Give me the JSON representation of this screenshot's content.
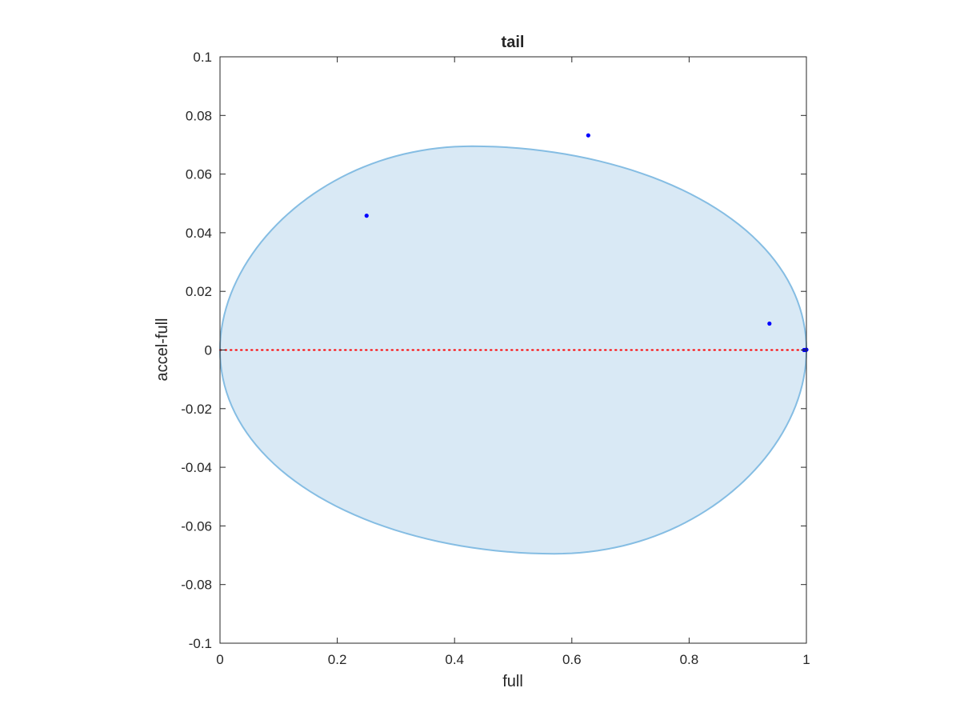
{
  "chart_data": {
    "type": "scatter",
    "title": "tail",
    "xlabel": "full",
    "ylabel": "accel-full",
    "xlim": [
      0,
      1
    ],
    "ylim": [
      -0.1,
      0.1
    ],
    "xticks": [
      0,
      0.2,
      0.4,
      0.6,
      0.8,
      1
    ],
    "xtick_labels": [
      "0",
      "0.2",
      "0.4",
      "0.6",
      "0.8",
      "1"
    ],
    "yticks": [
      0.1,
      0.08,
      0.06,
      0.04,
      0.02,
      0,
      -0.02,
      -0.04,
      -0.06,
      -0.08,
      -0.1
    ],
    "ytick_labels": [
      "0.1",
      "0.08",
      "0.06",
      "0.04",
      "0.02",
      "0",
      "-0.02",
      "-0.04",
      "-0.06",
      "-0.08",
      "-0.1"
    ],
    "grid": false,
    "region": {
      "shape": "ellipse",
      "center": [
        0.5,
        0
      ],
      "semi_axes": [
        0.5,
        0.0695
      ],
      "top_peak_x": 0.43,
      "bottom_trough_x": 0.57,
      "fill_color": "#d9e9f5",
      "edge_color": "#85bde3"
    },
    "reference_line": {
      "y": 0,
      "color": "#ff0000",
      "style": "dotted"
    },
    "points": [
      {
        "x": 0.25,
        "y": 0.0458
      },
      {
        "x": 0.628,
        "y": 0.0732
      },
      {
        "x": 0.937,
        "y": 0.009
      },
      {
        "x": 0.996,
        "y": 0.0
      },
      {
        "x": 0.999,
        "y": 0.0
      },
      {
        "x": 1.0,
        "y": 0.0001
      }
    ],
    "point_color": "#0000ff"
  }
}
